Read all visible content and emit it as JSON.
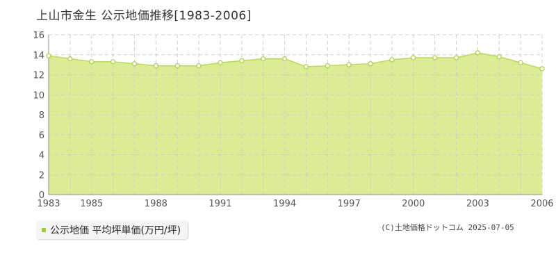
{
  "title": "上山市金生  公示地価推移[1983-2006]",
  "legend_label": "公示地価 平均坪単価(万円/坪)",
  "credit": "(C)土地価格ドットコム 2025-07-05",
  "colors": {
    "area_fill": "#dcec94",
    "line": "#b8d85a",
    "marker_fill": "#ffffff",
    "marker_stroke": "#a8cc44",
    "grid": "#cccccc",
    "legend_swatch": "#9ccc3c"
  },
  "chart_data": {
    "type": "area",
    "title": "上山市金生  公示地価推移[1983-2006]",
    "xlabel": "",
    "ylabel": "",
    "x": [
      1983,
      1984,
      1985,
      1986,
      1987,
      1988,
      1989,
      1990,
      1991,
      1992,
      1993,
      1994,
      1995,
      1996,
      1997,
      1998,
      1999,
      2000,
      2001,
      2002,
      2003,
      2004,
      2005,
      2006
    ],
    "series": [
      {
        "name": "公示地価 平均坪単価(万円/坪)",
        "values": [
          13.9,
          13.6,
          13.3,
          13.3,
          13.1,
          12.9,
          12.9,
          12.9,
          13.2,
          13.4,
          13.6,
          13.6,
          12.8,
          12.9,
          13.0,
          13.1,
          13.5,
          13.7,
          13.7,
          13.7,
          14.2,
          13.8,
          13.2,
          12.6
        ]
      }
    ],
    "x_ticks": [
      "1983",
      "1985",
      "1988",
      "1991",
      "1994",
      "1997",
      "2000",
      "2003",
      "2006"
    ],
    "y_ticks": [
      "0",
      "2",
      "4",
      "6",
      "8",
      "10",
      "12",
      "14",
      "16"
    ],
    "xlim": [
      1983,
      2006
    ],
    "ylim": [
      0,
      16
    ],
    "grid": true,
    "legend_position": "bottom-left"
  }
}
